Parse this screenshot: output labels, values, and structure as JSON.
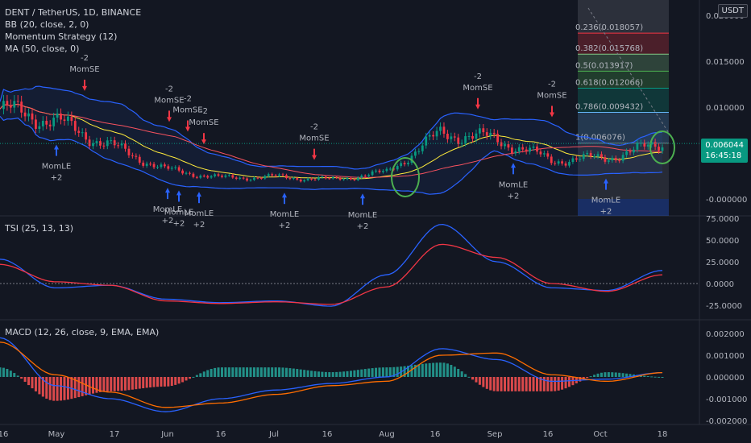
{
  "header": {
    "symbol_line": "DENT / TetherUS, 1D, BINANCE",
    "indicators": [
      "BB (20, close, 2, 0)",
      "Momentum Strategy (12)",
      "MA (50, close, 0)"
    ]
  },
  "price_scale": {
    "currency": "USDT",
    "last_price": "0.006044",
    "countdown": "16:45:18",
    "labels": [
      "0.020000",
      "0.015000",
      "0.010000",
      "-0.000000"
    ]
  },
  "panes": {
    "tsi_title": "TSI (25, 13, 13)",
    "tsi_labels": [
      "75.0000",
      "50.0000",
      "25.0000",
      "0.0000",
      "-25.0000"
    ],
    "macd_title": "MACD (12, 26, close, 9, EMA, EMA)",
    "macd_labels": [
      "0.002000",
      "0.001000",
      "0.000000",
      "-0.001000",
      "-0.002000"
    ]
  },
  "time_axis": {
    "labels": [
      "16",
      "May",
      "17",
      "Jun",
      "16",
      "Jul",
      "16",
      "Aug",
      "16",
      "Sep",
      "16",
      "Oct",
      "18"
    ]
  },
  "fibonacci": {
    "levels": [
      {
        "label": "0.236(0.018057)",
        "color": "#f23645"
      },
      {
        "label": "0.382(0.015768)",
        "color": "#81c784"
      },
      {
        "label": "0.5(0.013917)",
        "color": "#4caf50"
      },
      {
        "label": "0.618(0.012066)",
        "color": "#089981"
      },
      {
        "label": "0.786(0.009432)",
        "color": "#64b5f6"
      },
      {
        "label": "1(0.006076)",
        "color": "#787b86"
      }
    ]
  },
  "signals": {
    "short_text": "-2",
    "short_name": "MomSE",
    "long_name": "MomLE",
    "long_text": "+2"
  },
  "colors": {
    "background": "#131722",
    "up": "#089981",
    "down": "#f23645",
    "bollinger": "#2962ff",
    "ma": "#f7525f",
    "basis": "#ffeb3b",
    "tsi": "#2962ff",
    "tsi_signal": "#f23645",
    "macd": "#2962ff",
    "macd_signal": "#ff6d00"
  },
  "chart_data": [
    {
      "type": "candlestick",
      "title": "DENT / TetherUS, 1D, BINANCE",
      "ylim": [
        -0.002,
        0.021
      ],
      "last_price": 0.006044,
      "approx_close_path": [
        {
          "date": "Apr 16",
          "close": 0.0098
        },
        {
          "date": "May",
          "close": 0.0085
        },
        {
          "date": "May 17",
          "close": 0.0058
        },
        {
          "date": "Jun",
          "close": 0.0032
        },
        {
          "date": "Jun 16",
          "close": 0.0023
        },
        {
          "date": "Jul",
          "close": 0.0024
        },
        {
          "date": "Jul 16",
          "close": 0.0021
        },
        {
          "date": "Aug",
          "close": 0.0029
        },
        {
          "date": "Aug 16",
          "close": 0.0072
        },
        {
          "date": "Sep",
          "close": 0.0065
        },
        {
          "date": "Sep 16",
          "close": 0.0042
        },
        {
          "date": "Oct",
          "close": 0.0045
        },
        {
          "date": "Oct 18",
          "close": 0.006
        }
      ]
    },
    {
      "type": "line",
      "title": "TSI (25, 13, 13)",
      "ylim": [
        -37.5,
        75
      ],
      "series": [
        {
          "name": "TSI",
          "values": [
            28,
            -5,
            -2,
            -18,
            -22,
            -20,
            -26,
            10,
            68,
            25,
            -5,
            -8,
            15
          ]
        },
        {
          "name": "Signal",
          "values": [
            22,
            2,
            -2,
            -20,
            -23,
            -21,
            -24,
            -4,
            45,
            30,
            0,
            -9,
            10
          ]
        }
      ]
    },
    {
      "type": "bar",
      "title": "MACD (12, 26, close, 9, EMA, EMA)",
      "ylim": [
        -0.002,
        0.002
      ],
      "series": [
        {
          "name": "MACD",
          "values": [
            0.0018,
            -0.0004,
            -0.001,
            -0.0016,
            -0.001,
            -0.0006,
            -0.0003,
            0.0,
            0.0013,
            0.0008,
            -0.0002,
            -0.0001,
            0.0002
          ]
        },
        {
          "name": "Signal",
          "values": [
            0.0016,
            0.0001,
            -0.0007,
            -0.0014,
            -0.0012,
            -0.0008,
            -0.0004,
            -0.0002,
            0.001,
            0.0011,
            0.0001,
            -0.0002,
            0.0002
          ]
        }
      ]
    }
  ]
}
